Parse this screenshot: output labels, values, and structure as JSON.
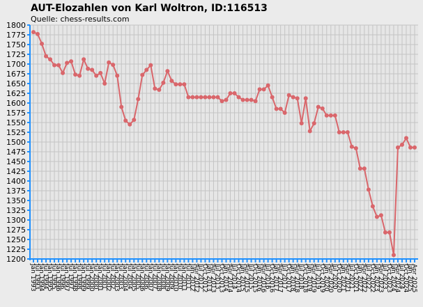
{
  "chart_data": {
    "type": "line",
    "title": "AUT-Elozahlen von Karl Woltron, ID:116513",
    "subtitle": "Quelle: chess-results.com",
    "categories": [
      "Jan 1993",
      "Jul 1993",
      "Jan 1994",
      "Jul 1994",
      "Jan 1995",
      "Jul 1995",
      "Jan 1996",
      "Jul 1996",
      "Jan 1997",
      "Jul 1997",
      "Jan 1998",
      "Jul 1998",
      "Jan 1999",
      "Jul 1999",
      "Jan 2000",
      "Jul 2000",
      "Jan 2001",
      "Jul 2001",
      "Jan 2002",
      "Jul 2002",
      "Jan 2003",
      "Jul 2003",
      "Jan 2004",
      "Jul 2004",
      "Jan 2005",
      "Jul 2005",
      "Jan 2006",
      "Jul 2006",
      "Jan 2007",
      "Jul 2007",
      "Jan 2008",
      "Jul 2008",
      "Jan 2009",
      "Jul 2009",
      "Jan 2010",
      "Jul 2010",
      "Jan 2011",
      "Jul 2011",
      "Jan 2012",
      "Apr 2012",
      "Jul 2012",
      "Oct 2012",
      "Jan 2013",
      "Apr 2013",
      "Jul 2013",
      "Oct 2013",
      "Jan 2014",
      "Apr 2014",
      "Jul 2014",
      "Oct 2014",
      "Jan 2015",
      "Apr 2015",
      "Jul 2015",
      "Oct 2015",
      "Jan 2016",
      "Apr 2016",
      "Jul 2016",
      "Oct 2016",
      "Jan 2017",
      "Apr 2017",
      "Jul 2017",
      "Oct 2017",
      "Jan 2018",
      "Apr 2018",
      "Jul 2018",
      "Oct 2018",
      "Jan 2019",
      "Apr 2019",
      "Jul 2019",
      "Oct 2019",
      "Jan 2020",
      "Apr 2020",
      "Jul 2020",
      "Oct 2020",
      "Jan 2021",
      "Apr 2021",
      "Jul 2021",
      "Oct 2021",
      "Jan 2022",
      "Apr 2022",
      "Jul 2022",
      "Oct 2022",
      "Jan 2023",
      "Apr 2023",
      "Jul 2023",
      "Oct 2023",
      "Jan 2024",
      "Apr 2024",
      "Jul 2024",
      "Oct 2024",
      "Jan 2025",
      "Apr 2025"
    ],
    "series": [
      {
        "name": "Karl Woltron",
        "color": "#d9666b",
        "values": [
          1782,
          1777,
          1752,
          1720,
          1712,
          1697,
          1697,
          1677,
          1703,
          1707,
          1673,
          1670,
          1712,
          1688,
          1685,
          1670,
          1677,
          1650,
          1704,
          1698,
          1670,
          1590,
          1555,
          1545,
          1557,
          1610,
          1672,
          1685,
          1697,
          1637,
          1634,
          1652,
          1682,
          1657,
          1648,
          1648,
          1648,
          1615,
          1615,
          1615,
          1615,
          1615,
          1615,
          1615,
          1615,
          1605,
          1608,
          1625,
          1625,
          1615,
          1608,
          1608,
          1608,
          1605,
          1635,
          1635,
          1645,
          1615,
          1585,
          1585,
          1575,
          1620,
          1615,
          1612,
          1548,
          1612,
          1528,
          1548,
          1590,
          1586,
          1568,
          1568,
          1568,
          1525,
          1525,
          1525,
          1488,
          1484,
          1432,
          1432,
          1378,
          1335,
          1308,
          1312,
          1268,
          1268,
          1210,
          1486,
          1493,
          1510,
          1486,
          1486
        ]
      }
    ],
    "ylim": [
      1200,
      1800
    ],
    "yticks": [
      1200,
      1225,
      1250,
      1275,
      1300,
      1325,
      1350,
      1375,
      1400,
      1425,
      1450,
      1475,
      1500,
      1525,
      1550,
      1575,
      1600,
      1625,
      1650,
      1675,
      1700,
      1725,
      1750,
      1775,
      1800
    ],
    "grid": true
  }
}
